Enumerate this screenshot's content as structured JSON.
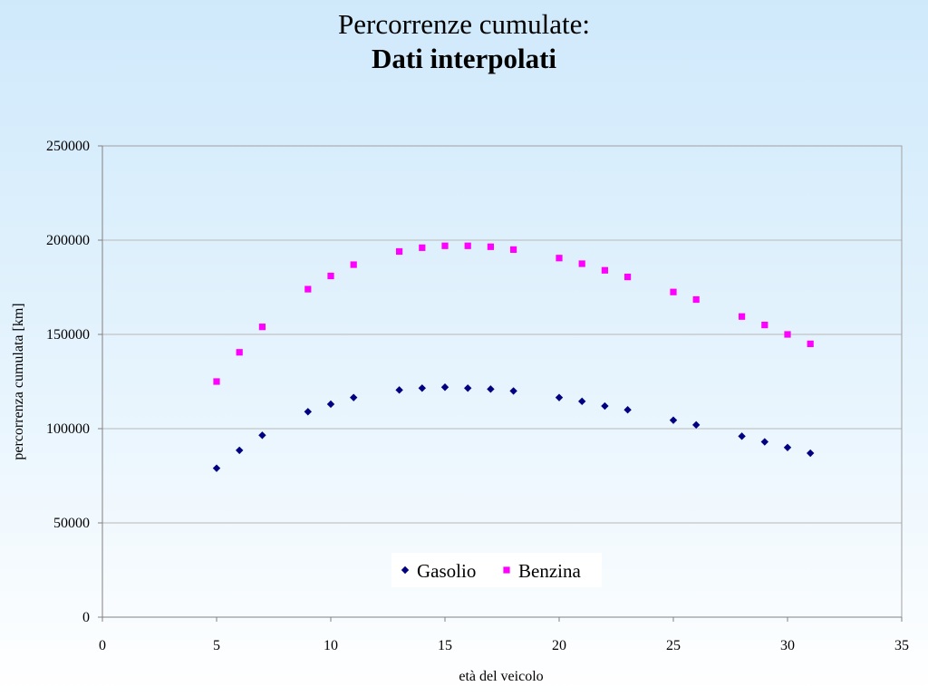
{
  "chart_data": {
    "type": "scatter",
    "title": "Percorrenze cumulate:",
    "subtitle": "Dati interpolati",
    "xlabel": "età del veicolo",
    "ylabel": "percorrenza cumulata [km]",
    "xlim": [
      0,
      35
    ],
    "ylim": [
      0,
      250000
    ],
    "x_ticks": [
      0,
      5,
      10,
      15,
      20,
      25,
      30,
      35
    ],
    "y_ticks": [
      0,
      50000,
      100000,
      150000,
      200000,
      250000
    ],
    "grid": "horizontal",
    "legend_position": "bottom-center",
    "series": [
      {
        "name": "Gasolio",
        "color": "#000080",
        "marker": "diamond",
        "x": [
          5,
          6,
          7,
          9,
          10,
          11,
          13,
          14,
          15,
          16,
          17,
          18,
          20,
          21,
          22,
          23,
          25,
          26,
          28,
          29,
          30,
          31
        ],
        "y": [
          79000,
          88500,
          96500,
          109000,
          113000,
          116500,
          120500,
          121500,
          122000,
          121500,
          121000,
          120000,
          116500,
          114500,
          112000,
          110000,
          104500,
          102000,
          96000,
          93000,
          90000,
          87000
        ]
      },
      {
        "name": "Benzina",
        "color": "#ff00ff",
        "marker": "square",
        "x": [
          5,
          6,
          7,
          9,
          10,
          11,
          13,
          14,
          15,
          16,
          17,
          18,
          20,
          21,
          22,
          23,
          25,
          26,
          28,
          29,
          30,
          31
        ],
        "y": [
          125000,
          140500,
          154000,
          174000,
          181000,
          187000,
          194000,
          196000,
          197000,
          197000,
          196500,
          195000,
          190500,
          187500,
          184000,
          180500,
          172500,
          168500,
          159500,
          155000,
          150000,
          145000
        ]
      }
    ]
  }
}
